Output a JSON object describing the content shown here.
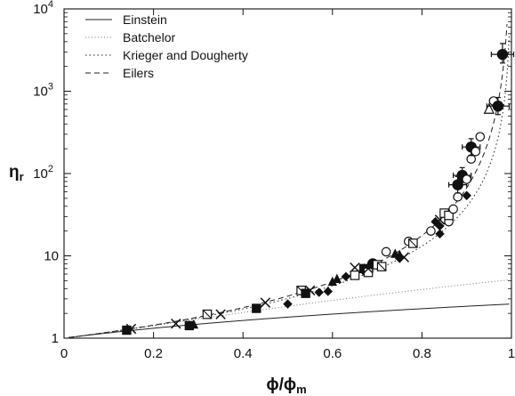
{
  "chart_data": {
    "type": "scatter",
    "title": "",
    "xlabel": "ϕ/ϕm",
    "xlabel_main": "ϕ/ϕ",
    "xlabel_sub": "m",
    "ylabel": "ηr",
    "ylabel_main": "η",
    "ylabel_sub": "r",
    "xlim": [
      0,
      1
    ],
    "ylim": [
      1,
      10000
    ],
    "yscale": "log",
    "x_ticks": [
      {
        "value": 0,
        "label": "0"
      },
      {
        "value": 0.2,
        "label": "0.2"
      },
      {
        "value": 0.4,
        "label": "0.4"
      },
      {
        "value": 0.6,
        "label": "0.6"
      },
      {
        "value": 0.8,
        "label": "0.8"
      },
      {
        "value": 1,
        "label": "1"
      }
    ],
    "y_ticks": [
      {
        "value": 1,
        "label": "1",
        "base": "1",
        "exp": ""
      },
      {
        "value": 10,
        "label": "10",
        "base": "10",
        "exp": ""
      },
      {
        "value": 100,
        "label": "10^2",
        "base": "10",
        "exp": "2"
      },
      {
        "value": 1000,
        "label": "10^3",
        "base": "10",
        "exp": "3"
      },
      {
        "value": 10000,
        "label": "10^4",
        "base": "10",
        "exp": "4"
      }
    ],
    "grid": false,
    "legend_position": "top-left",
    "curves": [
      {
        "name": "Einstein",
        "model": "einstein",
        "dash": "",
        "color": "#222222"
      },
      {
        "name": "Batchelor",
        "model": "batchelor",
        "dash": "1,2.5",
        "color": "#777777"
      },
      {
        "name": "Krieger and Dougherty",
        "model": "krieger",
        "dash": "1.5,3",
        "color": "#222222"
      },
      {
        "name": "Eilers",
        "model": "eilers",
        "dash": "6,4",
        "color": "#222222"
      }
    ],
    "points": [
      {
        "x": 0.14,
        "y": 1.25,
        "m": "square-filled"
      },
      {
        "x": 0.15,
        "y": 1.3,
        "m": "x"
      },
      {
        "x": 0.25,
        "y": 1.5,
        "m": "x"
      },
      {
        "x": 0.28,
        "y": 1.42,
        "m": "square-filled"
      },
      {
        "x": 0.29,
        "y": 1.45,
        "m": "triangle-filled"
      },
      {
        "x": 0.32,
        "y": 1.95,
        "m": "square-x"
      },
      {
        "x": 0.35,
        "y": 1.95,
        "m": "x"
      },
      {
        "x": 0.43,
        "y": 2.3,
        "m": "square-filled"
      },
      {
        "x": 0.45,
        "y": 2.7,
        "m": "x"
      },
      {
        "x": 0.5,
        "y": 2.6,
        "m": "diamond-filled"
      },
      {
        "x": 0.53,
        "y": 3.8,
        "m": "square-x"
      },
      {
        "x": 0.54,
        "y": 3.5,
        "m": "square-filled"
      },
      {
        "x": 0.55,
        "y": 3.8,
        "m": "x"
      },
      {
        "x": 0.57,
        "y": 3.6,
        "m": "diamond-filled"
      },
      {
        "x": 0.59,
        "y": 3.7,
        "m": "diamond-filled"
      },
      {
        "x": 0.6,
        "y": 4.8,
        "m": "triangle-filled"
      },
      {
        "x": 0.61,
        "y": 5.2,
        "m": "triangle-filled"
      },
      {
        "x": 0.63,
        "y": 5.6,
        "m": "diamond-filled"
      },
      {
        "x": 0.65,
        "y": 7.2,
        "m": "x"
      },
      {
        "x": 0.65,
        "y": 5.8,
        "m": "square-open"
      },
      {
        "x": 0.67,
        "y": 6.5,
        "m": "diamond-filled"
      },
      {
        "x": 0.67,
        "y": 7.0,
        "m": "square-filled"
      },
      {
        "x": 0.68,
        "y": 6.3,
        "m": "square-open"
      },
      {
        "x": 0.68,
        "y": 7.0,
        "m": "x"
      },
      {
        "x": 0.69,
        "y": 8.0,
        "m": "circle-filled"
      },
      {
        "x": 0.7,
        "y": 7.8,
        "m": "square-open"
      },
      {
        "x": 0.71,
        "y": 7.4,
        "m": "square-x"
      },
      {
        "x": 0.72,
        "y": 11.2,
        "m": "circle-open"
      },
      {
        "x": 0.74,
        "y": 10.5,
        "m": "triangle-filled"
      },
      {
        "x": 0.75,
        "y": 10.2,
        "m": "triangle-filled"
      },
      {
        "x": 0.75,
        "y": 9.3,
        "m": "diamond-filled"
      },
      {
        "x": 0.76,
        "y": 9.6,
        "m": "x"
      },
      {
        "x": 0.77,
        "y": 15.0,
        "m": "circle-open"
      },
      {
        "x": 0.78,
        "y": 14.2,
        "m": "square-x"
      },
      {
        "x": 0.82,
        "y": 20.0,
        "m": "circle-open"
      },
      {
        "x": 0.83,
        "y": 26.0,
        "m": "diamond-filled"
      },
      {
        "x": 0.84,
        "y": 23.0,
        "m": "diamond-filled"
      },
      {
        "x": 0.84,
        "y": 18.5,
        "m": "diamond-filled"
      },
      {
        "x": 0.84,
        "y": 27.5,
        "m": "x"
      },
      {
        "x": 0.85,
        "y": 33.0,
        "m": "square-open"
      },
      {
        "x": 0.86,
        "y": 26.0,
        "m": "circle-open"
      },
      {
        "x": 0.86,
        "y": 31.0,
        "m": "square-open"
      },
      {
        "x": 0.87,
        "y": 37.0,
        "m": "circle-open"
      },
      {
        "x": 0.88,
        "y": 52.0,
        "m": "circle-open"
      },
      {
        "x": 0.88,
        "y": 73.0,
        "m": "circle-filled",
        "err_x": 0.02,
        "err_y_low": 58,
        "err_y_high": 92
      },
      {
        "x": 0.89,
        "y": 95.0,
        "m": "circle-filled",
        "err_x": 0.02,
        "err_y_low": 78,
        "err_y_high": 118
      },
      {
        "x": 0.9,
        "y": 85.0,
        "m": "circle-open"
      },
      {
        "x": 0.9,
        "y": 54.0,
        "m": "diamond-filled"
      },
      {
        "x": 0.91,
        "y": 150.0,
        "m": "circle-open"
      },
      {
        "x": 0.91,
        "y": 210.0,
        "m": "circle-filled",
        "err_x": 0.02,
        "err_y_low": 165,
        "err_y_high": 265
      },
      {
        "x": 0.92,
        "y": 185.0,
        "m": "circle-open"
      },
      {
        "x": 0.93,
        "y": 280.0,
        "m": "circle-open"
      },
      {
        "x": 0.95,
        "y": 600.0,
        "m": "triangle-open"
      },
      {
        "x": 0.96,
        "y": 760.0,
        "m": "circle-open"
      },
      {
        "x": 0.97,
        "y": 660.0,
        "m": "circle-filled",
        "err_x": 0.025,
        "err_y_low": 520,
        "err_y_high": 840
      },
      {
        "x": 0.98,
        "y": 2800.0,
        "m": "circle-filled",
        "err_x": 0.025,
        "err_y_low": 2200,
        "err_y_high": 3800
      }
    ]
  }
}
